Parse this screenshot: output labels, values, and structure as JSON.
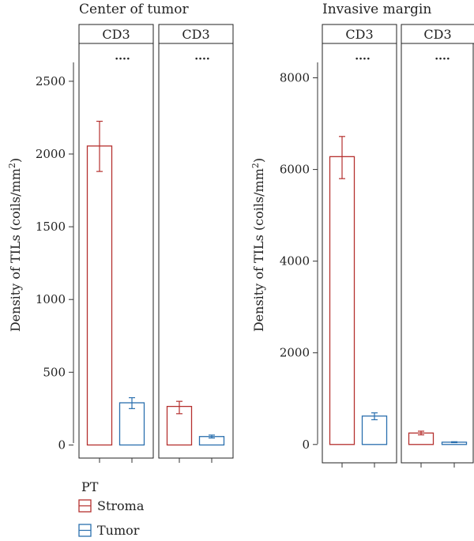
{
  "legend": {
    "title": "PT",
    "items": [
      {
        "label": "Stroma",
        "color": "#b5302e"
      },
      {
        "label": "Tumor",
        "color": "#2a6fae"
      }
    ]
  },
  "chart_data": [
    {
      "type": "bar",
      "title": "Center of tumor",
      "ylabel": "Density of TILs (coils/mm²)",
      "ylabel_main": "Density of TILs (coils/mm",
      "ylabel_sup": "2",
      "ylabel_close": ")",
      "ylim": [
        -90,
        2760
      ],
      "yticks": [
        0,
        500,
        1000,
        1500,
        2000,
        2500
      ],
      "series_names": [
        "Stroma",
        "Tumor"
      ],
      "panels": [
        {
          "strip": "CD3",
          "significance": "····",
          "bars": [
            {
              "series": "Stroma",
              "value": 2055,
              "err_low": 1880,
              "err_high": 2225
            },
            {
              "series": "Tumor",
              "value": 290,
              "err_low": 250,
              "err_high": 325
            }
          ]
        },
        {
          "strip": "CD3",
          "significance": "····",
          "bars": [
            {
              "series": "Stroma",
              "value": 265,
              "err_low": 215,
              "err_high": 300
            },
            {
              "series": "Tumor",
              "value": 58,
              "err_low": 48,
              "err_high": 68
            }
          ]
        }
      ]
    },
    {
      "type": "bar",
      "title": "Invasive margin",
      "ylabel": "Density of TILs (coils/mm²)",
      "ylabel_main": "Density of TILs (coils/mm",
      "ylabel_sup": "2",
      "ylabel_close": ")",
      "ylim": [
        -400,
        8750
      ],
      "yticks": [
        0,
        2000,
        4000,
        6000,
        8000
      ],
      "series_names": [
        "Stroma",
        "Tumor"
      ],
      "panels": [
        {
          "strip": "CD3",
          "significance": "····",
          "bars": [
            {
              "series": "Stroma",
              "value": 6280,
              "err_low": 5800,
              "err_high": 6720
            },
            {
              "series": "Tumor",
              "value": 620,
              "err_low": 540,
              "err_high": 690
            }
          ]
        },
        {
          "strip": "CD3",
          "significance": "····",
          "bars": [
            {
              "series": "Stroma",
              "value": 250,
              "err_low": 210,
              "err_high": 290
            },
            {
              "series": "Tumor",
              "value": 50,
              "err_low": 40,
              "err_high": 60
            }
          ]
        }
      ]
    }
  ]
}
